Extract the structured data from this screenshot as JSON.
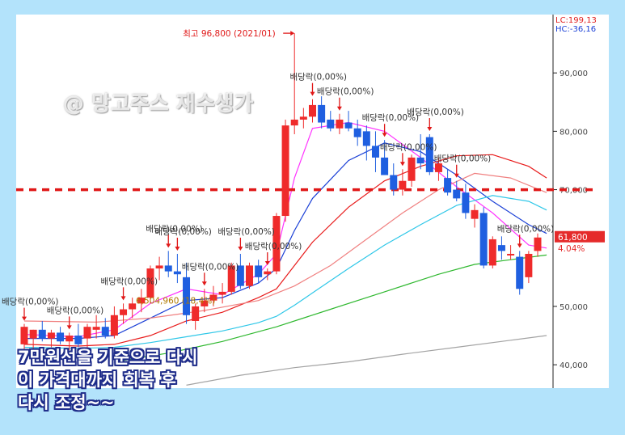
{
  "chart_data": {
    "type": "candlestick",
    "ylim": [
      36000,
      100000
    ],
    "y_ticks": [
      {
        "value": 90000,
        "label": "90,000"
      },
      {
        "value": 80000,
        "label": "80,000"
      },
      {
        "value": 70000,
        "label": "70,000"
      },
      {
        "value": 50000,
        "label": "50,000"
      },
      {
        "value": 40000,
        "label": "40,000"
      }
    ],
    "top_indicators": [
      "LC:199,13",
      "HC:-36,16"
    ],
    "current_price": {
      "value": 61800,
      "label": "61,800",
      "change_label": "4.04%",
      "color": "#e52a2a"
    },
    "reference_line": {
      "value": 70000,
      "color": "#e01818"
    },
    "candles": [
      {
        "o": 43500,
        "h": 47000,
        "l": 41500,
        "c": 46500
      },
      {
        "o": 44500,
        "h": 46000,
        "l": 42500,
        "c": 46000
      },
      {
        "o": 46000,
        "h": 47500,
        "l": 44000,
        "c": 44500
      },
      {
        "o": 44500,
        "h": 46000,
        "l": 43000,
        "c": 45500
      },
      {
        "o": 45500,
        "h": 46500,
        "l": 43500,
        "c": 44000
      },
      {
        "o": 44000,
        "h": 45500,
        "l": 42500,
        "c": 45000
      },
      {
        "o": 45000,
        "h": 47000,
        "l": 43000,
        "c": 43500
      },
      {
        "o": 44500,
        "h": 47000,
        "l": 42000,
        "c": 46500
      },
      {
        "o": 46000,
        "h": 48500,
        "l": 44500,
        "c": 46500
      },
      {
        "o": 46500,
        "h": 48000,
        "l": 44500,
        "c": 45000
      },
      {
        "o": 45000,
        "h": 50000,
        "l": 44500,
        "c": 48500
      },
      {
        "o": 48500,
        "h": 50500,
        "l": 47000,
        "c": 49500
      },
      {
        "o": 49500,
        "h": 51500,
        "l": 48000,
        "c": 50500
      },
      {
        "o": 50500,
        "h": 53000,
        "l": 49000,
        "c": 51500
      },
      {
        "o": 51500,
        "h": 57000,
        "l": 50500,
        "c": 56500
      },
      {
        "o": 56500,
        "h": 58500,
        "l": 54500,
        "c": 57000
      },
      {
        "o": 57000,
        "h": 59500,
        "l": 55000,
        "c": 56000
      },
      {
        "o": 56000,
        "h": 59000,
        "l": 54000,
        "c": 55500
      },
      {
        "o": 55000,
        "h": 57500,
        "l": 47000,
        "c": 48500
      },
      {
        "o": 47500,
        "h": 50500,
        "l": 46000,
        "c": 50000
      },
      {
        "o": 50000,
        "h": 53000,
        "l": 49000,
        "c": 51000
      },
      {
        "o": 51000,
        "h": 53500,
        "l": 50000,
        "c": 52000
      },
      {
        "o": 52000,
        "h": 54000,
        "l": 50500,
        "c": 52500
      },
      {
        "o": 52500,
        "h": 57500,
        "l": 52000,
        "c": 57000
      },
      {
        "o": 57000,
        "h": 59000,
        "l": 53000,
        "c": 53500
      },
      {
        "o": 53500,
        "h": 57500,
        "l": 53000,
        "c": 57000
      },
      {
        "o": 57000,
        "h": 58000,
        "l": 54000,
        "c": 55000
      },
      {
        "o": 55500,
        "h": 56500,
        "l": 54500,
        "c": 56000
      },
      {
        "o": 56000,
        "h": 66000,
        "l": 55500,
        "c": 65500
      },
      {
        "o": 65500,
        "h": 82000,
        "l": 64500,
        "c": 81000
      },
      {
        "o": 81000,
        "h": 96800,
        "l": 79500,
        "c": 82000
      },
      {
        "o": 82000,
        "h": 84000,
        "l": 80500,
        "c": 82500
      },
      {
        "o": 82500,
        "h": 85500,
        "l": 81500,
        "c": 84500
      },
      {
        "o": 84500,
        "h": 86000,
        "l": 80500,
        "c": 81500
      },
      {
        "o": 82000,
        "h": 83500,
        "l": 80000,
        "c": 80500
      },
      {
        "o": 80500,
        "h": 83000,
        "l": 79500,
        "c": 82000
      },
      {
        "o": 81500,
        "h": 83500,
        "l": 80000,
        "c": 80500
      },
      {
        "o": 80500,
        "h": 82000,
        "l": 77500,
        "c": 79000
      },
      {
        "o": 80000,
        "h": 81000,
        "l": 75000,
        "c": 77500
      },
      {
        "o": 77500,
        "h": 80000,
        "l": 73000,
        "c": 75500
      },
      {
        "o": 75500,
        "h": 78500,
        "l": 72500,
        "c": 72500
      },
      {
        "o": 72500,
        "h": 74500,
        "l": 69000,
        "c": 70000
      },
      {
        "o": 70000,
        "h": 73500,
        "l": 69000,
        "c": 71500
      },
      {
        "o": 71500,
        "h": 76000,
        "l": 70500,
        "c": 75500
      },
      {
        "o": 75500,
        "h": 79500,
        "l": 73500,
        "c": 74500
      },
      {
        "o": 79000,
        "h": 79500,
        "l": 72500,
        "c": 73000
      },
      {
        "o": 73000,
        "h": 75500,
        "l": 71500,
        "c": 74500
      },
      {
        "o": 72000,
        "h": 73500,
        "l": 69000,
        "c": 69500
      },
      {
        "o": 70000,
        "h": 71500,
        "l": 68000,
        "c": 68500
      },
      {
        "o": 69500,
        "h": 71000,
        "l": 65000,
        "c": 66000
      },
      {
        "o": 65000,
        "h": 67500,
        "l": 63500,
        "c": 66500
      },
      {
        "o": 66000,
        "h": 67000,
        "l": 56500,
        "c": 57000
      },
      {
        "o": 57000,
        "h": 62000,
        "l": 56500,
        "c": 61500
      },
      {
        "o": 60500,
        "h": 62000,
        "l": 58000,
        "c": 59500
      },
      {
        "o": 59000,
        "h": 60500,
        "l": 58000,
        "c": 59000
      },
      {
        "o": 58500,
        "h": 59500,
        "l": 52000,
        "c": 53000
      },
      {
        "o": 55000,
        "h": 59500,
        "l": 54000,
        "c": 59000
      },
      {
        "o": 59500,
        "h": 62500,
        "l": 58500,
        "c": 61800
      }
    ],
    "moving_averages": [
      {
        "color": "#ff33ff",
        "values": [
          [
            0,
            45200
          ],
          [
            6,
            44800
          ],
          [
            10,
            46000
          ],
          [
            14,
            50500
          ],
          [
            18,
            53000
          ],
          [
            22,
            52000
          ],
          [
            26,
            55500
          ],
          [
            28,
            59000
          ],
          [
            30,
            72000
          ],
          [
            32,
            80500
          ],
          [
            36,
            81500
          ],
          [
            40,
            80000
          ],
          [
            44,
            75500
          ],
          [
            48,
            70500
          ],
          [
            52,
            66000
          ],
          [
            56,
            60500
          ],
          [
            58,
            60000
          ]
        ]
      },
      {
        "color": "#1a3fd6",
        "values": [
          [
            0,
            44500
          ],
          [
            6,
            44500
          ],
          [
            10,
            45000
          ],
          [
            14,
            48000
          ],
          [
            18,
            51000
          ],
          [
            22,
            51500
          ],
          [
            26,
            54000
          ],
          [
            28,
            56500
          ],
          [
            30,
            63000
          ],
          [
            32,
            68500
          ],
          [
            36,
            75000
          ],
          [
            40,
            78000
          ],
          [
            44,
            76500
          ],
          [
            48,
            72500
          ],
          [
            52,
            68000
          ],
          [
            56,
            64000
          ],
          [
            58,
            62500
          ]
        ]
      },
      {
        "color": "#e81b1b",
        "values": [
          [
            0,
            43500
          ],
          [
            6,
            43200
          ],
          [
            10,
            43500
          ],
          [
            14,
            45000
          ],
          [
            18,
            47500
          ],
          [
            22,
            49000
          ],
          [
            26,
            51500
          ],
          [
            28,
            53000
          ],
          [
            30,
            57000
          ],
          [
            32,
            61000
          ],
          [
            36,
            67000
          ],
          [
            40,
            71500
          ],
          [
            44,
            74000
          ],
          [
            48,
            75800
          ],
          [
            52,
            76000
          ],
          [
            56,
            74000
          ],
          [
            58,
            72000
          ]
        ]
      },
      {
        "color": "#2ec7e8",
        "values": [
          [
            0,
            43000
          ],
          [
            6,
            42800
          ],
          [
            10,
            43000
          ],
          [
            14,
            43800
          ],
          [
            18,
            44800
          ],
          [
            22,
            45800
          ],
          [
            26,
            47200
          ],
          [
            28,
            48300
          ],
          [
            30,
            50200
          ],
          [
            32,
            52300
          ],
          [
            36,
            56500
          ],
          [
            40,
            60500
          ],
          [
            44,
            64000
          ],
          [
            48,
            67300
          ],
          [
            52,
            69000
          ],
          [
            56,
            68000
          ],
          [
            58,
            66500
          ]
        ]
      },
      {
        "color": "#f08080",
        "values": [
          [
            0,
            47500
          ],
          [
            8,
            47300
          ],
          [
            14,
            48000
          ],
          [
            20,
            49300
          ],
          [
            26,
            51000
          ],
          [
            30,
            53500
          ],
          [
            34,
            57000
          ],
          [
            38,
            61500
          ],
          [
            42,
            66000
          ],
          [
            46,
            70000
          ],
          [
            50,
            72800
          ],
          [
            54,
            72000
          ],
          [
            58,
            69500
          ]
        ]
      },
      {
        "color": "#2fb82f",
        "values": [
          [
            10,
            40500
          ],
          [
            16,
            42000
          ],
          [
            22,
            44000
          ],
          [
            28,
            46500
          ],
          [
            34,
            49500
          ],
          [
            40,
            52500
          ],
          [
            46,
            55500
          ],
          [
            50,
            57200
          ],
          [
            54,
            58000
          ],
          [
            58,
            58800
          ]
        ]
      },
      {
        "color": "#a3a3a3",
        "values": [
          [
            18,
            36500
          ],
          [
            24,
            38200
          ],
          [
            30,
            39500
          ],
          [
            36,
            40500
          ],
          [
            42,
            41800
          ],
          [
            48,
            43000
          ],
          [
            54,
            44200
          ],
          [
            58,
            45000
          ]
        ]
      }
    ],
    "annotations": [
      {
        "candle": 0,
        "text": "배당락(0,00%)"
      },
      {
        "candle": 5,
        "text": "배당락(0,00%)"
      },
      {
        "candle": 11,
        "text": "배당락(0,00%)"
      },
      {
        "candle": 16,
        "text": "배당락(0,00%)"
      },
      {
        "candle": 17,
        "text": "배당락(0,00%)"
      },
      {
        "candle": 20,
        "text": "배당락(0,00%)"
      },
      {
        "candle": 24,
        "text": "배당락(0,00%)"
      },
      {
        "candle": 27,
        "text": "배당락(0,00%)"
      },
      {
        "candle": 32,
        "text": "배당락(0,00%)"
      },
      {
        "candle": 35,
        "text": "배당락(0,00%)"
      },
      {
        "candle": 40,
        "text": "배당락(0,00%)"
      },
      {
        "candle": 42,
        "text": "배당락(0,00%)"
      },
      {
        "candle": 45,
        "text": "배당락(0,00%)"
      },
      {
        "candle": 48,
        "text": "배당락(0,00%)"
      },
      {
        "candle": 55,
        "text": "배당락(0,00%)"
      }
    ],
    "high_marker": {
      "text": "최고 96,800 (2021/01)",
      "value": 96800,
      "candle": 30
    },
    "low_marker": {
      "text": "6,504,960 (18,4%)",
      "value": 51000
    }
  },
  "watermark": "@ 망고주스 재수생가",
  "caption": [
    "7만원선을 기준으로 다시",
    "이 가격대까지 회복 후",
    "다시 조정~~"
  ],
  "colors": {
    "up": "#ef2b2b",
    "down": "#1f5fe0",
    "background": "#ffffff",
    "frame": "#b3e3fb"
  }
}
